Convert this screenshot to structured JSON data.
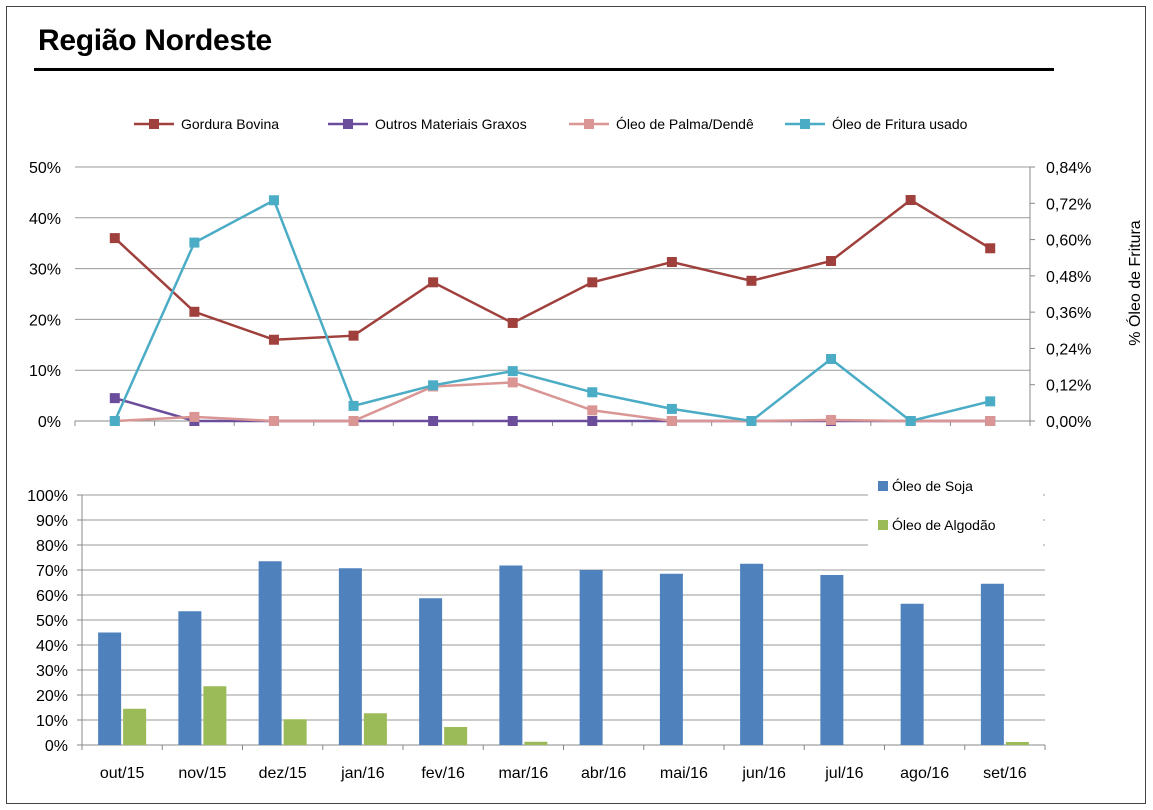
{
  "title": "Região Nordeste",
  "chart_data": [
    {
      "type": "line",
      "categories": [
        "out/15",
        "nov/15",
        "dez/15",
        "jan/16",
        "fev/16",
        "mar/16",
        "abr/16",
        "mai/16",
        "jun/16",
        "jul/16",
        "ago/16",
        "set/16"
      ],
      "ylim": [
        0,
        50
      ],
      "y_ticks": [
        "0%",
        "10%",
        "20%",
        "30%",
        "40%",
        "50%"
      ],
      "y2lim": [
        0,
        0.84
      ],
      "y2_ticks": [
        "0,00%",
        "0,12%",
        "0,24%",
        "0,36%",
        "0,48%",
        "0,60%",
        "0,72%",
        "0,84%"
      ],
      "y2label": "% Óleo de Fritura",
      "legend_position": "top",
      "grid": true,
      "series": [
        {
          "name": "Gordura Bovina",
          "color": "#A0403C",
          "axis": "left",
          "values": [
            36,
            21.5,
            16,
            16.8,
            27.3,
            19.3,
            27.3,
            31.3,
            27.6,
            31.5,
            43.5,
            34
          ]
        },
        {
          "name": "Outros Materiais Graxos",
          "color": "#6B4E9B",
          "axis": "left",
          "values": [
            4.5,
            0,
            0,
            0,
            0,
            0,
            0,
            0,
            0,
            0,
            0,
            0
          ]
        },
        {
          "name": "Óleo de Palma/Dendê",
          "color": "#D99694",
          "axis": "left",
          "values": [
            0,
            0.8,
            0,
            0,
            6.8,
            7.6,
            2.1,
            0,
            0,
            0.2,
            0,
            0
          ]
        },
        {
          "name": "Óleo de Fritura usado",
          "color": "#4BACC6",
          "axis": "right",
          "values": [
            0,
            0.59,
            0.73,
            0.05,
            0.118,
            0.165,
            0.095,
            0.04,
            0,
            0.205,
            0,
            0.065
          ]
        }
      ]
    },
    {
      "type": "bar",
      "categories": [
        "out/15",
        "nov/15",
        "dez/15",
        "jan/16",
        "fev/16",
        "mar/16",
        "abr/16",
        "mai/16",
        "jun/16",
        "jul/16",
        "ago/16",
        "set/16"
      ],
      "ylim": [
        0,
        100
      ],
      "y_ticks": [
        "0%",
        "10%",
        "20%",
        "30%",
        "40%",
        "50%",
        "60%",
        "70%",
        "80%",
        "90%",
        "100%"
      ],
      "legend_position": "top-right",
      "grid": true,
      "series": [
        {
          "name": "Óleo de Soja",
          "color": "#4F81BD",
          "values": [
            45,
            53.5,
            73.5,
            70.7,
            58.7,
            71.8,
            70,
            68.5,
            72.5,
            68,
            56.5,
            64.5
          ]
        },
        {
          "name": "Óleo de Algodão",
          "color": "#9BBB59",
          "values": [
            14.5,
            23.5,
            10.3,
            12.7,
            7.2,
            1.3,
            0,
            0,
            0,
            0,
            0,
            1.2
          ]
        }
      ]
    }
  ]
}
